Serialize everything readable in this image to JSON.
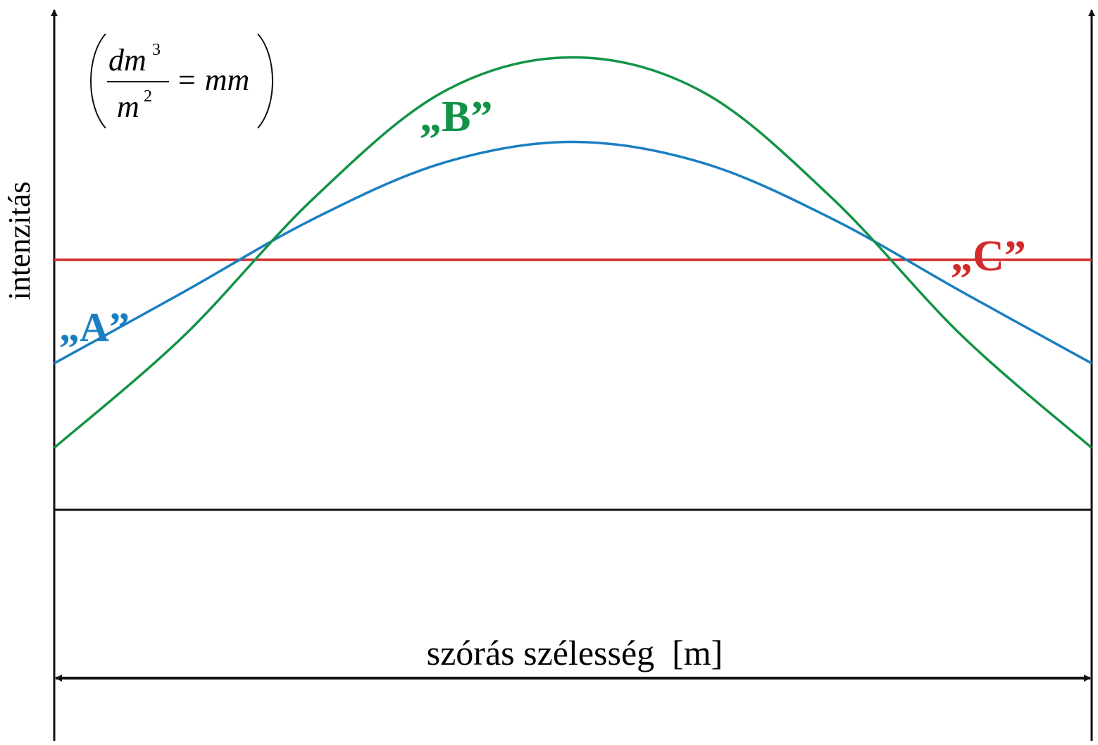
{
  "chart_data": {
    "type": "line",
    "xlabel": "szórás szélesség  [m]",
    "ylabel": "intenzitás",
    "unit_note": {
      "numerator": "dm",
      "numerator_exp": "3",
      "denominator": "m",
      "denominator_exp": "2",
      "result": "= mm"
    },
    "xlim": [
      0,
      1
    ],
    "ylim": [
      0,
      1
    ],
    "grid": false,
    "colors": {
      "A": "#1a7fc1",
      "B": "#139347",
      "C": "#d42a2a",
      "axis": "#111111"
    },
    "series": [
      {
        "name": "„A”",
        "x": [
          0,
          0.125,
          0.25,
          0.375,
          0.5,
          0.625,
          0.75,
          0.875,
          1
        ],
        "y": [
          0.293,
          0.436,
          0.582,
          0.694,
          0.736,
          0.694,
          0.582,
          0.436,
          0.293
        ]
      },
      {
        "name": "„B”",
        "x": [
          0,
          0.125,
          0.25,
          0.375,
          0.5,
          0.625,
          0.75,
          0.875,
          1
        ],
        "y": [
          0.124,
          0.348,
          0.623,
          0.836,
          0.905,
          0.836,
          0.623,
          0.348,
          0.124
        ]
      },
      {
        "name": "„C”",
        "x": [
          0,
          1
        ],
        "y": [
          0.5,
          0.5
        ]
      }
    ]
  }
}
